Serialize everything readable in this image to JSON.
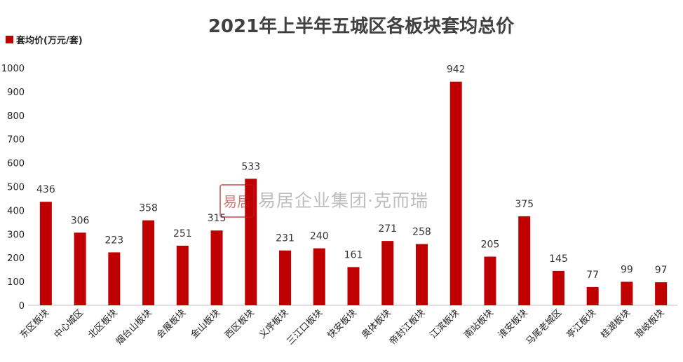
{
  "watermark": {
    "text": "易居企业集团·克而瑞",
    "seal_text": "易居",
    "color": "#b01c1c"
  },
  "colors": {
    "bar": "#c00000",
    "axis": "#bfbfbf",
    "title": "#404040"
  },
  "chart_data": {
    "type": "bar",
    "title": "2021年上半年五城区各板块套均总价",
    "legend": {
      "position": "top-left",
      "entries": [
        "套均价(万元/套)"
      ]
    },
    "ylim": [
      0,
      1000
    ],
    "yticks": [
      0,
      100,
      200,
      300,
      400,
      500,
      600,
      700,
      800,
      900,
      1000
    ],
    "grid": false,
    "categories": [
      "东区板块",
      "中心城区",
      "北区板块",
      "烟台山板块",
      "会展板块",
      "金山板块",
      "西区板块",
      "义序板块",
      "三江口板块",
      "快安板块",
      "奥体板块",
      "帝封江板块",
      "江滨板块",
      "南站板块",
      "淮安板块",
      "马尾老城区",
      "亭江板块",
      "桂湖板块",
      "琅岐板块"
    ],
    "series": [
      {
        "name": "套均价(万元/套)",
        "values": [
          436,
          306,
          223,
          358,
          251,
          315,
          533,
          231,
          240,
          161,
          271,
          258,
          942,
          205,
          375,
          145,
          77,
          99,
          97
        ]
      }
    ]
  }
}
